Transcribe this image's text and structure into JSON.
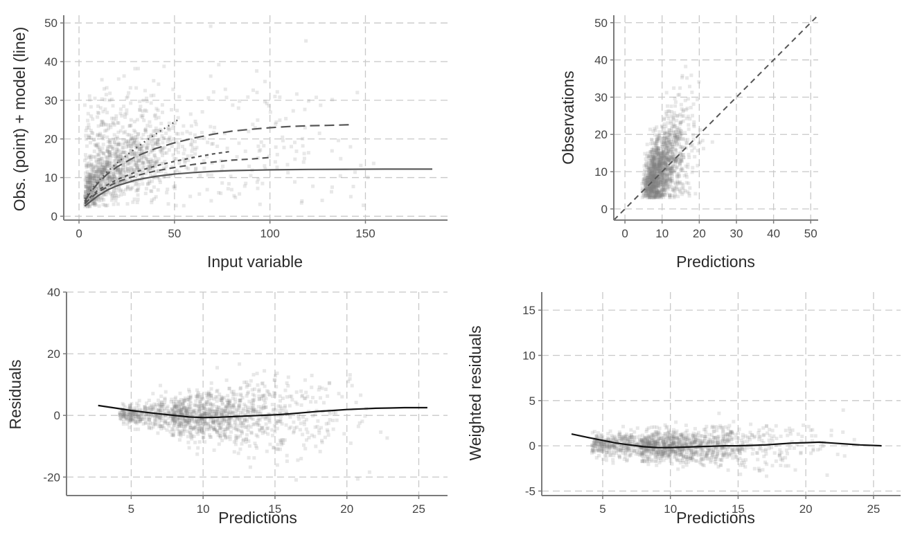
{
  "chart_data": [
    {
      "id": "obs_model",
      "type": "scatter",
      "xlabel": "Input variable",
      "ylabel": "Obs. (point) + model (line)",
      "xlim": [
        -8,
        193
      ],
      "ylim": [
        -1,
        52
      ],
      "xticks": [
        0,
        50,
        100,
        150
      ],
      "yticks": [
        0,
        10,
        20,
        30,
        40,
        50
      ],
      "grid": true,
      "point_color": "#7e7e7e",
      "series": [
        {
          "style": "solid",
          "color": "#555555",
          "x": [
            3,
            5,
            10,
            15,
            20,
            30,
            40,
            50,
            60,
            70,
            80,
            100,
            120,
            140,
            160,
            185
          ],
          "y": [
            2.6,
            3.4,
            5.3,
            6.8,
            7.9,
            9.4,
            10.3,
            10.9,
            11.3,
            11.6,
            11.8,
            12.0,
            12.1,
            12.15,
            12.2,
            12.2
          ]
        },
        {
          "style": "long-dash",
          "color": "#555555",
          "x": [
            3,
            5,
            10,
            15,
            20,
            30,
            40,
            50,
            60,
            70,
            80,
            90,
            100,
            110,
            120,
            130,
            143
          ],
          "y": [
            3.8,
            5.5,
            8.6,
            11.0,
            12.8,
            15.5,
            17.5,
            19.0,
            20.2,
            21.2,
            22.0,
            22.5,
            22.9,
            23.2,
            23.4,
            23.5,
            23.7
          ]
        },
        {
          "style": "dash",
          "color": "#555555",
          "x": [
            3,
            5,
            10,
            20,
            30,
            40,
            50,
            60,
            70,
            80,
            90,
            100
          ],
          "y": [
            3.2,
            4.2,
            6.3,
            8.9,
            10.5,
            11.7,
            12.6,
            13.4,
            14.0,
            14.5,
            14.8,
            15.2
          ]
        },
        {
          "style": "short-dash",
          "color": "#555555",
          "x": [
            3,
            5,
            10,
            20,
            30,
            40,
            50,
            60,
            70,
            80
          ],
          "y": [
            3.5,
            4.5,
            6.8,
            9.5,
            11.5,
            13.0,
            14.2,
            15.2,
            16.1,
            16.8
          ]
        },
        {
          "style": "dot",
          "color": "#555555",
          "x": [
            3,
            5,
            10,
            15,
            20,
            25,
            30,
            35,
            40,
            45,
            52
          ],
          "y": [
            4.5,
            6.0,
            9.0,
            11.6,
            13.8,
            15.8,
            17.7,
            19.5,
            21.2,
            22.8,
            25.0
          ]
        }
      ]
    },
    {
      "id": "obs_vs_pred",
      "type": "scatter",
      "xlabel": "Predictions",
      "ylabel": "Observations",
      "xlim": [
        -3,
        52
      ],
      "ylim": [
        -3,
        52
      ],
      "xticks": [
        0,
        10,
        20,
        30,
        40,
        50
      ],
      "yticks": [
        0,
        10,
        20,
        30,
        40,
        50
      ],
      "grid": true,
      "point_color": "#7e7e7e",
      "reference_line": {
        "style": "dash",
        "color": "#555555",
        "x": [
          -3,
          52
        ],
        "y": [
          -3,
          52
        ]
      }
    },
    {
      "id": "resid",
      "type": "scatter",
      "xlabel": "Predictions",
      "ylabel": "Residuals",
      "xlim": [
        0.5,
        27
      ],
      "ylim": [
        -26,
        40
      ],
      "xticks": [
        5,
        10,
        15,
        20,
        25
      ],
      "yticks": [
        -20,
        0,
        20,
        40
      ],
      "grid": true,
      "point_color": "#7e7e7e",
      "smooth": {
        "color": "#111111",
        "x": [
          2.7,
          4,
          5,
          6,
          7,
          8,
          9,
          10,
          11,
          12,
          13,
          14,
          15,
          16,
          17,
          18,
          19,
          20,
          21,
          22,
          23,
          24,
          25.6
        ],
        "y": [
          3.2,
          2.3,
          1.6,
          1.0,
          0.5,
          0.0,
          -0.5,
          -0.7,
          -0.6,
          -0.4,
          -0.2,
          0.0,
          0.2,
          0.5,
          0.9,
          1.3,
          1.6,
          1.9,
          2.1,
          2.3,
          2.4,
          2.5,
          2.5
        ]
      }
    },
    {
      "id": "wres",
      "type": "scatter",
      "xlabel": "Predictions",
      "ylabel": "Weighted residuals",
      "xlim": [
        0.5,
        27
      ],
      "ylim": [
        -5.5,
        17
      ],
      "xticks": [
        5,
        10,
        15,
        20,
        25
      ],
      "yticks": [
        -5,
        0,
        5,
        10,
        15
      ],
      "grid": true,
      "point_color": "#7e7e7e",
      "smooth": {
        "color": "#111111",
        "x": [
          2.7,
          4,
          5,
          6,
          7,
          8,
          9,
          10,
          11,
          12,
          13,
          14,
          15,
          16,
          17,
          18,
          19,
          20,
          21,
          22,
          23,
          24,
          25.6
        ],
        "y": [
          1.3,
          0.9,
          0.6,
          0.3,
          0.1,
          -0.1,
          -0.2,
          -0.2,
          -0.15,
          -0.1,
          -0.05,
          0.0,
          0.0,
          0.05,
          0.1,
          0.2,
          0.3,
          0.35,
          0.4,
          0.3,
          0.2,
          0.1,
          0.0
        ]
      }
    }
  ]
}
